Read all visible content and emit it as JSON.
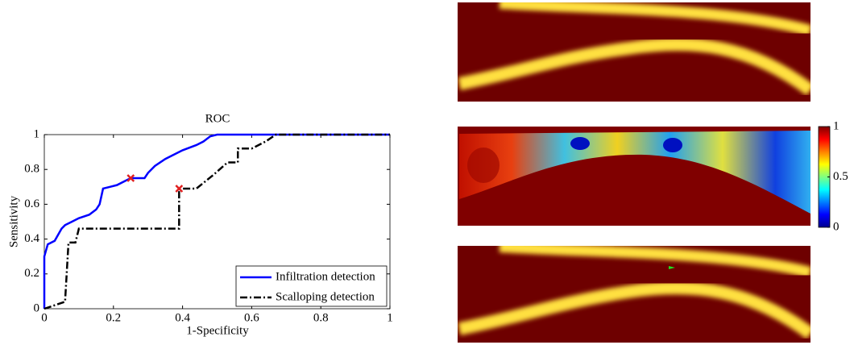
{
  "chart_data": [
    {
      "type": "line",
      "title": "ROC",
      "xlabel": "1-Specificity",
      "ylabel": "Sensitivity",
      "xlim": [
        0,
        1
      ],
      "ylim": [
        0,
        1
      ],
      "xticks": [
        0,
        0.2,
        0.4,
        0.6,
        0.8,
        1
      ],
      "yticks": [
        0,
        0.2,
        0.4,
        0.6,
        0.8,
        1
      ],
      "legend": "lower right",
      "series": [
        {
          "name": "Infiltration detection",
          "color": "#0000ff",
          "linestyle": "solid",
          "x": [
            0,
            0,
            0.01,
            0.03,
            0.05,
            0.06,
            0.08,
            0.1,
            0.13,
            0.15,
            0.16,
            0.17,
            0.19,
            0.21,
            0.24,
            0.25,
            0.29,
            0.3,
            0.32,
            0.35,
            0.37,
            0.4,
            0.44,
            0.46,
            0.48,
            0.5,
            1
          ],
          "values": [
            0,
            0.3,
            0.37,
            0.39,
            0.46,
            0.48,
            0.5,
            0.52,
            0.54,
            0.57,
            0.6,
            0.69,
            0.7,
            0.71,
            0.74,
            0.75,
            0.75,
            0.78,
            0.82,
            0.86,
            0.88,
            0.91,
            0.94,
            0.96,
            0.99,
            1,
            1
          ]
        },
        {
          "name": "Scalloping detection",
          "color": "#000000",
          "linestyle": "dashdot",
          "x": [
            0,
            0.03,
            0.06,
            0.07,
            0.09,
            0.1,
            0.39,
            0.39,
            0.44,
            0.49,
            0.53,
            0.56,
            0.56,
            0.6,
            0.64,
            0.67,
            1
          ],
          "values": [
            0,
            0.02,
            0.04,
            0.38,
            0.38,
            0.46,
            0.46,
            0.69,
            0.69,
            0.77,
            0.84,
            0.84,
            0.92,
            0.92,
            0.96,
            1,
            1
          ]
        }
      ],
      "operating_points": {
        "color": "#e02020",
        "x": [
          0.25,
          0.39
        ],
        "values": [
          0.75,
          0.69
        ]
      }
    },
    {
      "type": "colorbar",
      "ylim": [
        0,
        1
      ],
      "yticks": [
        0,
        0.5,
        1
      ]
    }
  ]
}
